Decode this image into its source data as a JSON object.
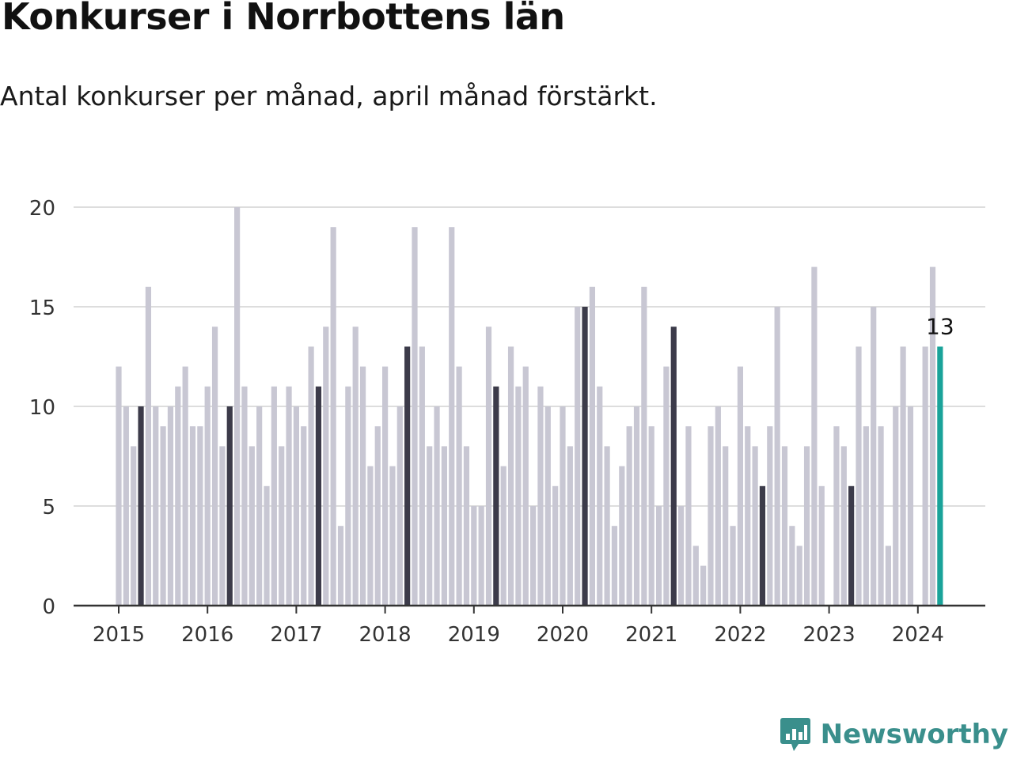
{
  "title": "Konkurser i Norrbottens län",
  "subtitle": "Antal konkurser per månad, april månad förstärkt.",
  "brand": {
    "name": "Newsworthy",
    "logo_icon": "bar-chart-speech-bubble-icon",
    "color": "#3a8f8c"
  },
  "colors": {
    "bar": "#c8c7d3",
    "highlight": "#3c3b4a",
    "latest": "#1aa39a",
    "grid": "#dddddd",
    "axis": "#333333"
  },
  "chart_data": {
    "type": "bar",
    "start": "2015-01",
    "end": "2024-04",
    "values": [
      12,
      10,
      8,
      10,
      16,
      10,
      9,
      10,
      11,
      12,
      9,
      9,
      11,
      14,
      8,
      10,
      20,
      11,
      8,
      10,
      6,
      11,
      8,
      11,
      10,
      9,
      13,
      11,
      14,
      19,
      4,
      11,
      14,
      12,
      7,
      9,
      12,
      7,
      10,
      13,
      19,
      13,
      8,
      10,
      8,
      19,
      12,
      8,
      5,
      5,
      14,
      11,
      7,
      13,
      11,
      12,
      5,
      11,
      10,
      6,
      10,
      8,
      15,
      15,
      16,
      11,
      8,
      4,
      7,
      9,
      10,
      16,
      9,
      5,
      12,
      14,
      5,
      9,
      3,
      2,
      9,
      10,
      8,
      4,
      12,
      9,
      8,
      6,
      9,
      15,
      8,
      4,
      3,
      8,
      17,
      6,
      0,
      9,
      8,
      6,
      13,
      9,
      15,
      9,
      3,
      10,
      13,
      10,
      0,
      13,
      17,
      13
    ],
    "highlight_month": "april",
    "x_ticks": [
      "2015",
      "2016",
      "2017",
      "2018",
      "2019",
      "2020",
      "2021",
      "2022",
      "2023",
      "2024"
    ],
    "y_ticks": [
      0,
      5,
      10,
      15,
      20
    ],
    "ylim": [
      0,
      20
    ],
    "latest_label": "13",
    "grid": true,
    "legend": "none"
  }
}
